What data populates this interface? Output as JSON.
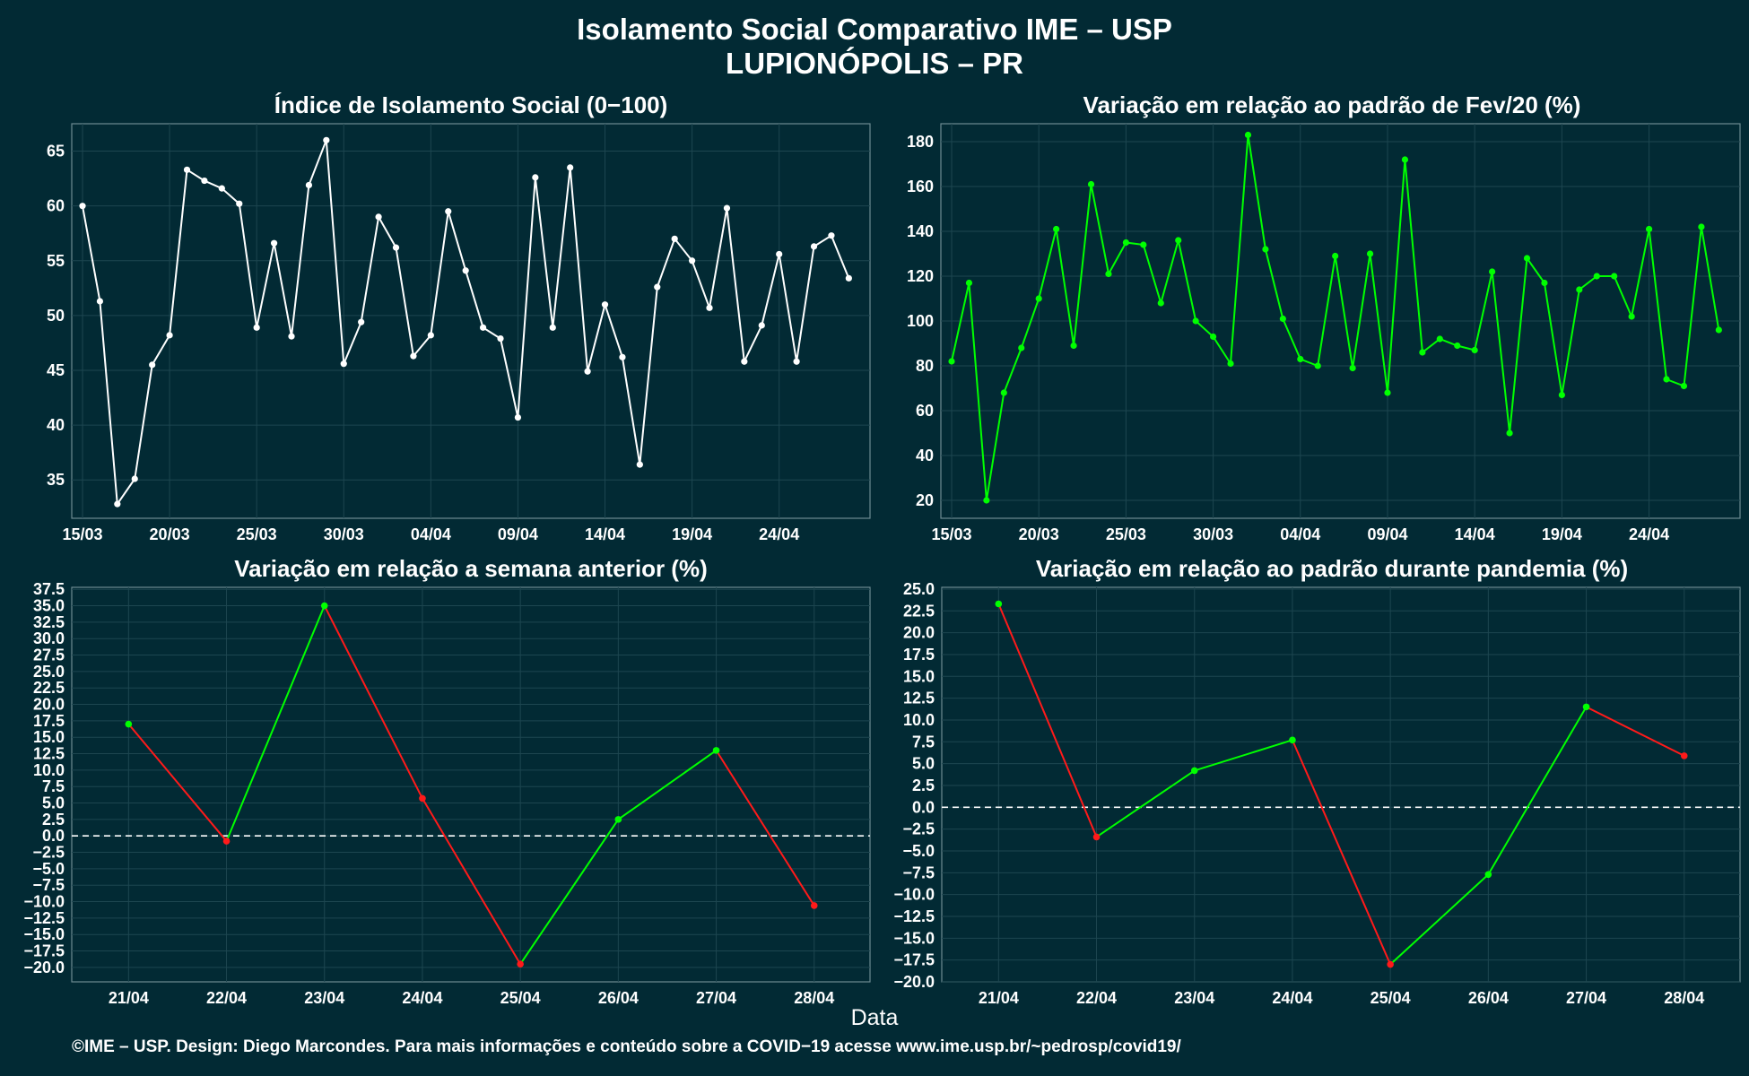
{
  "title_line1": "Isolamento Social Comparativo IME – USP",
  "title_line2": "LUPIONÓPOLIS – PR",
  "xlabel": "Data",
  "footer": "©IME – USP. Design: Diego Marcondes. Para mais informações e conteúdo sobre a COVID−19 acesse www.ime.usp.br/~pedrosp/covid19/",
  "colors": {
    "background": "#022a34",
    "white_line": "#ffffff",
    "green": "#00ff00",
    "red": "#ff1a1a"
  },
  "chart_data": [
    {
      "id": "isolamento",
      "type": "line",
      "title": "Índice de Isolamento Social (0−100)",
      "x_tick_labels": [
        "15/03",
        "20/03",
        "25/03",
        "30/03",
        "04/04",
        "09/04",
        "14/04",
        "19/04",
        "24/04"
      ],
      "x_tick_index": [
        0,
        5,
        10,
        15,
        20,
        25,
        30,
        35,
        40
      ],
      "ylim": [
        31.5,
        67.5
      ],
      "y_ticks": [
        35,
        40,
        45,
        50,
        55,
        60,
        65
      ],
      "color": "#ffffff",
      "values": [
        60,
        51.3,
        32.8,
        35.1,
        45.5,
        48.2,
        63.3,
        62.3,
        61.6,
        60.2,
        48.9,
        56.6,
        48.1,
        61.9,
        66,
        45.6,
        49.4,
        59,
        56.2,
        46.3,
        48.2,
        59.5,
        54.1,
        48.9,
        47.9,
        40.7,
        62.6,
        48.9,
        63.5,
        44.9,
        51,
        46.2,
        36.4,
        52.6,
        57,
        55,
        50.7,
        59.8,
        45.8,
        49.1,
        55.6,
        45.8,
        56.3,
        57.3,
        53.4
      ]
    },
    {
      "id": "variacao_fev",
      "type": "line",
      "title": "Variação em relação ao padrão de Fev/20 (%)",
      "x_tick_labels": [
        "15/03",
        "20/03",
        "25/03",
        "30/03",
        "04/04",
        "09/04",
        "14/04",
        "19/04",
        "24/04"
      ],
      "x_tick_index": [
        0,
        5,
        10,
        15,
        20,
        25,
        30,
        35,
        40
      ],
      "ylim": [
        12,
        188
      ],
      "y_ticks": [
        20,
        40,
        60,
        80,
        100,
        120,
        140,
        160,
        180
      ],
      "color": "#00ff00",
      "values": [
        82,
        117,
        20,
        68,
        88,
        110,
        141,
        89,
        161,
        121,
        135,
        134,
        108,
        136,
        100,
        93,
        81,
        183,
        132,
        101,
        83,
        80,
        129,
        79,
        130,
        68,
        172,
        86,
        92,
        89,
        87,
        122,
        50,
        128,
        117,
        67,
        114,
        120,
        120,
        102,
        141,
        74,
        71,
        142,
        96
      ]
    },
    {
      "id": "semana_anterior",
      "type": "line",
      "title": "Variação em relação a semana anterior (%)",
      "categories": [
        "21/04",
        "22/04",
        "23/04",
        "24/04",
        "25/04",
        "26/04",
        "27/04",
        "28/04"
      ],
      "ylim": [
        -22.2,
        37.8
      ],
      "y_ticks": [
        -20,
        -17.5,
        -15,
        -12.5,
        -10,
        -7.5,
        -5,
        -2.5,
        0,
        2.5,
        5,
        7.5,
        10,
        12.5,
        15,
        17.5,
        20,
        22.5,
        25,
        27.5,
        30,
        32.5,
        35,
        37.5
      ],
      "y_tick_labels": [
        "−20.0",
        "−17.5",
        "−15.0",
        "−12.5",
        "−10.0",
        "−7.5",
        "−5.0",
        "−2.5",
        "0.0",
        "2.5",
        "5.0",
        "7.5",
        "10.0",
        "12.5",
        "15.0",
        "17.5",
        "20.0",
        "22.5",
        "25.0",
        "27.5",
        "30.0",
        "32.5",
        "35.0",
        "37.5"
      ],
      "reference_line": 0,
      "values": [
        17,
        -0.8,
        35,
        5.7,
        -19.5,
        2.5,
        13,
        -10.6
      ]
    },
    {
      "id": "padrao_pandemia",
      "type": "line",
      "title": "Variação em relação ao padrão durante pandemia (%)",
      "categories": [
        "21/04",
        "22/04",
        "23/04",
        "24/04",
        "25/04",
        "26/04",
        "27/04",
        "28/04"
      ],
      "ylim": [
        -20,
        25.2
      ],
      "y_ticks": [
        -20,
        -17.5,
        -15,
        -12.5,
        -10,
        -7.5,
        -5,
        -2.5,
        0,
        2.5,
        5,
        7.5,
        10,
        12.5,
        15,
        17.5,
        20,
        22.5,
        25
      ],
      "y_tick_labels": [
        "−20.0",
        "−17.5",
        "−15.0",
        "−12.5",
        "−10.0",
        "−7.5",
        "−5.0",
        "−2.5",
        "0.0",
        "2.5",
        "5.0",
        "7.5",
        "10.0",
        "12.5",
        "15.0",
        "17.5",
        "20.0",
        "22.5",
        "25.0"
      ],
      "reference_line": 0,
      "values": [
        23.3,
        -3.4,
        4.2,
        7.7,
        -18,
        -7.7,
        11.5,
        5.9
      ]
    }
  ]
}
